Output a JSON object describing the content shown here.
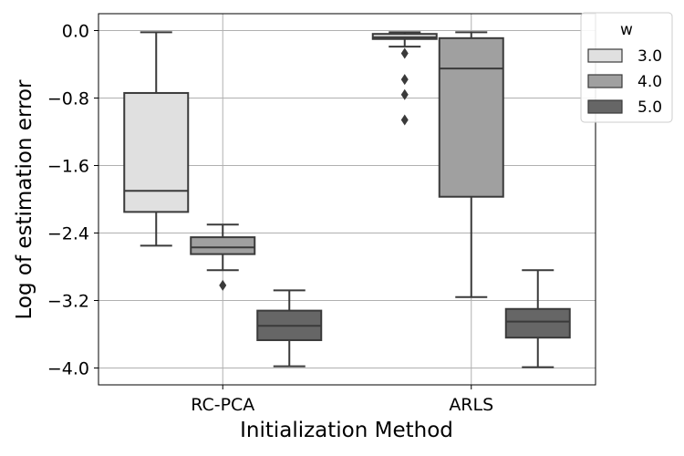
{
  "chart_data": {
    "type": "box",
    "title": "",
    "xlabel": "Initialization Method",
    "ylabel": "Log of estimation error",
    "categories": [
      "RC-PCA",
      "ARLS"
    ],
    "ylim": [
      -4.2,
      0.2
    ],
    "yticks": [
      0.0,
      -0.8,
      -1.6,
      -2.4,
      -3.2,
      -4.0
    ],
    "ytick_labels": [
      "0.0",
      "−0.8",
      "−1.6",
      "−2.4",
      "−3.2",
      "−4.0"
    ],
    "grid": true,
    "legend": {
      "title": "w",
      "placement": "top-right",
      "entries": [
        "3.0",
        "4.0",
        "5.0"
      ]
    },
    "series": [
      {
        "name": "3.0",
        "color": "#e0e0e0",
        "boxes": [
          {
            "category": "RC-PCA",
            "whisker_low": -2.55,
            "q1": -2.15,
            "median": -1.9,
            "q3": -0.74,
            "whisker_high": -0.02,
            "outliers": []
          },
          {
            "category": "ARLS",
            "whisker_low": -0.19,
            "q1": -0.1,
            "median": -0.08,
            "q3": -0.04,
            "whisker_high": -0.02,
            "outliers": [
              -0.27,
              -0.58,
              -0.76,
              -1.06
            ]
          }
        ]
      },
      {
        "name": "4.0",
        "color": "#a0a0a0",
        "boxes": [
          {
            "category": "RC-PCA",
            "whisker_low": -2.84,
            "q1": -2.65,
            "median": -2.57,
            "q3": -2.45,
            "whisker_high": -2.3,
            "outliers": [
              -3.02
            ]
          },
          {
            "category": "ARLS",
            "whisker_low": -3.16,
            "q1": -1.97,
            "median": -0.45,
            "q3": -0.09,
            "whisker_high": -0.02,
            "outliers": []
          }
        ]
      },
      {
        "name": "5.0",
        "color": "#666666",
        "boxes": [
          {
            "category": "RC-PCA",
            "whisker_low": -3.98,
            "q1": -3.67,
            "median": -3.5,
            "q3": -3.32,
            "whisker_high": -3.08,
            "outliers": []
          },
          {
            "category": "ARLS",
            "whisker_low": -3.99,
            "q1": -3.64,
            "median": -3.45,
            "q3": -3.3,
            "whisker_high": -2.84,
            "outliers": []
          }
        ]
      }
    ]
  }
}
